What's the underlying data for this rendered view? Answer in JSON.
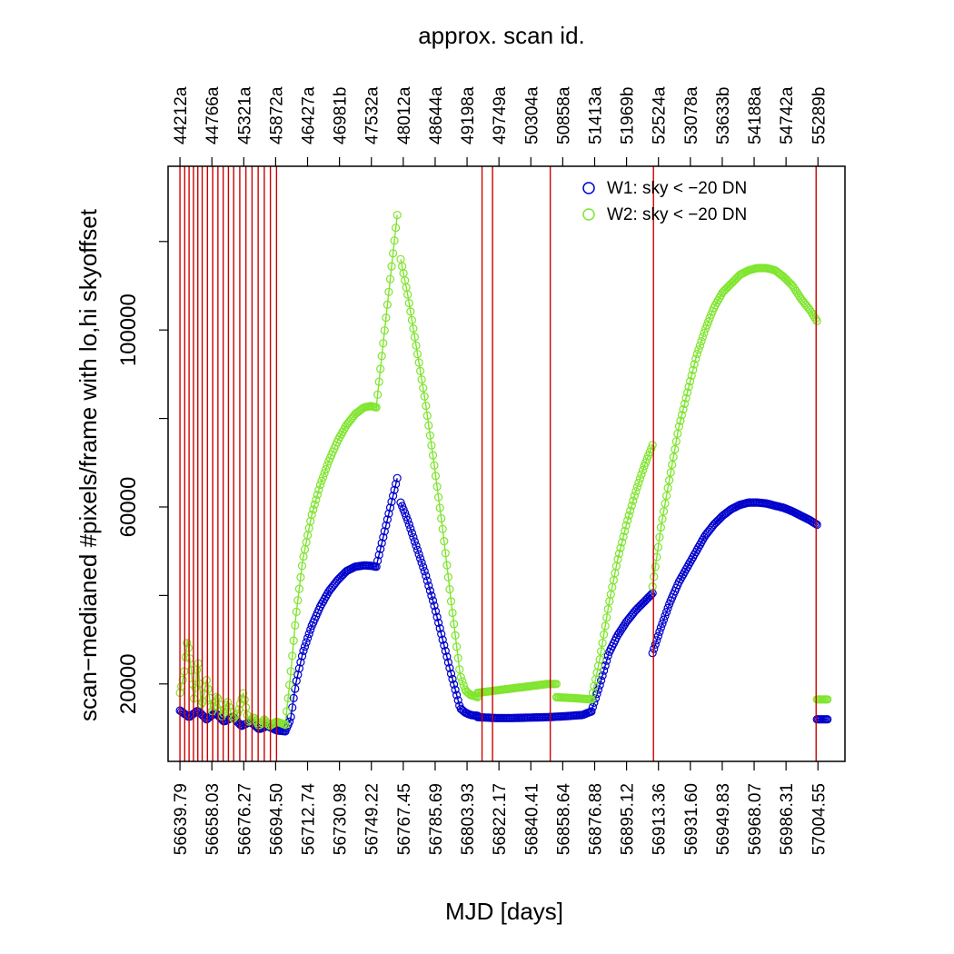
{
  "chart_data": {
    "type": "scatter",
    "title": "approx. scan id.",
    "xlabel": "MJD [days]",
    "ylabel": "scan−medianed #pixels/frame with lo,hi skyoffset",
    "xlim": [
      56633,
      57020
    ],
    "ylim": [
      2500,
      137000
    ],
    "bottom_ticks": [
      "56639.79",
      "56658.03",
      "56676.27",
      "56694.50",
      "56712.74",
      "56730.98",
      "56749.22",
      "56767.45",
      "56785.69",
      "56803.93",
      "56822.17",
      "56840.41",
      "56858.64",
      "56876.88",
      "56895.12",
      "56913.36",
      "56931.60",
      "56949.83",
      "56968.07",
      "56986.31",
      "57004.55"
    ],
    "top_ticks": [
      "44212a",
      "44766a",
      "45321a",
      "45872a",
      "46427a",
      "46981b",
      "47532a",
      "48012a",
      "48644a",
      "49198a",
      "49749a",
      "50304a",
      "50858a",
      "51413a",
      "51969b",
      "52524a",
      "53078a",
      "53633b",
      "54188a",
      "54742a",
      "55289b"
    ],
    "y_ticks": [
      20000,
      60000,
      100000
    ],
    "y_minor_ticks": [
      40000,
      80000,
      120000
    ],
    "vertical_lines_x": [
      56639.79,
      56642.5,
      56645.0,
      56647.5,
      56650.0,
      56652.5,
      56655.5,
      56658.5,
      56661.5,
      56664.5,
      56667.5,
      56670.5,
      56674.0,
      56677.5,
      56681.0,
      56684.5,
      56688.0,
      56691.5,
      56695.0,
      56812.5,
      56818.5,
      56851.5,
      56910.5,
      57003.5
    ],
    "legend": {
      "position": "top-right",
      "entries": [
        {
          "label": "W1: sky < −20 DN",
          "color": "#0000cc"
        },
        {
          "label": "W2: sky < −20 DN",
          "color": "#7fe52e"
        }
      ]
    },
    "series": [
      {
        "name": "W1: sky < −20 DN",
        "color": "#0000cc",
        "segments": [
          {
            "x": [
              56639.8,
              56645,
              56650,
              56655,
              56660,
              56665,
              56670,
              56675,
              56680,
              56685,
              56690,
              56695,
              56700
            ],
            "y": [
              14000,
              12500,
              14000,
              12000,
              13500,
              11500,
              12500,
              10500,
              11500,
              9800,
              10500,
              9500,
              9300
            ]
          },
          {
            "x": [
              56700,
              56703,
              56706,
              56710,
              56715,
              56720,
              56725,
              56730,
              56735,
              56740,
              56745,
              56749,
              56752
            ],
            "y": [
              9300,
              12000,
              20000,
              27000,
              33000,
              37500,
              41000,
              43500,
              45500,
              46500,
              46800,
              46700,
              46500
            ]
          },
          {
            "x": [
              56752,
              56764
            ],
            "y": [
              46500,
              66500
            ]
          },
          {
            "x": [
              56766,
              56770,
              56775,
              56780,
              56785,
              56790,
              56795,
              56800,
              56803,
              56806,
              56810
            ],
            "y": [
              61000,
              57000,
              51000,
              45000,
              38000,
              30000,
              22000,
              14500,
              13500,
              13000,
              12800
            ]
          },
          {
            "x": [
              56810,
              56820,
              56830,
              56840,
              56850,
              56860,
              56870,
              56875
            ],
            "y": [
              12500,
              12300,
              12300,
              12400,
              12500,
              12700,
              13000,
              13800
            ]
          },
          {
            "x": [
              56875,
              56880,
              56885,
              56890,
              56895,
              56900,
              56905,
              56910
            ],
            "y": [
              13800,
              20000,
              27000,
              31000,
              34000,
              36500,
              38500,
              40500
            ]
          },
          {
            "x": [
              56910,
              56915,
              56920,
              56925,
              56930,
              56935,
              56940,
              56945,
              56950,
              56955,
              56960,
              56965,
              56970,
              56975,
              56980,
              56985,
              56990,
              56995,
              57000,
              57004
            ],
            "y": [
              27000,
              33000,
              38500,
              43000,
              46500,
              50000,
              53500,
              56000,
              58000,
              59500,
              60500,
              61000,
              61000,
              60800,
              60300,
              59800,
              59000,
              58000,
              57000,
              56000
            ]
          },
          {
            "x": [
              57004,
              57010
            ],
            "y": [
              12000,
              12000
            ]
          }
        ]
      },
      {
        "name": "W2: sky < −20 DN",
        "color": "#7fe52e",
        "segments": [
          {
            "x": [
              56639.8,
              56642,
              56644,
              56646,
              56648,
              56650,
              56652,
              56655,
              56658,
              56661,
              56664,
              56667,
              56670,
              56673,
              56676,
              56679,
              56682,
              56685,
              56688,
              56691,
              56695,
              56700
            ],
            "y": [
              18000,
              22000,
              30000,
              24000,
              16000,
              26000,
              14500,
              21000,
              13500,
              17500,
              12500,
              16000,
              12000,
              13500,
              18000,
              11500,
              12500,
              10500,
              12000,
              10500,
              11500,
              10800
            ]
          },
          {
            "x": [
              56700,
              56703,
              56706,
              56710,
              56715,
              56720,
              56725,
              56730,
              56735,
              56740,
              56745,
              56749,
              56752
            ],
            "y": [
              10800,
              22000,
              35000,
              48000,
              58000,
              65000,
              70500,
              75000,
              78500,
              81000,
              82500,
              82800,
              82500
            ]
          },
          {
            "x": [
              56752,
              56764
            ],
            "y": [
              82500,
              126000
            ]
          },
          {
            "x": [
              56766,
              56770,
              56775,
              56780,
              56785,
              56790,
              56795,
              56800,
              56803,
              56806,
              56810
            ],
            "y": [
              116000,
              108000,
              96000,
              84000,
              70000,
              55000,
              38000,
              22000,
              18500,
              17500,
              17000
            ]
          },
          {
            "x": [
              56810,
              56820,
              56830,
              56840,
              56850,
              56855
            ],
            "y": [
              18000,
              18500,
              19000,
              19500,
              20000,
              20000
            ]
          },
          {
            "x": [
              56855,
              56865,
              56875
            ],
            "y": [
              17000,
              16800,
              16500
            ]
          },
          {
            "x": [
              56875,
              56880,
              56885,
              56890,
              56895,
              56900,
              56905,
              56910
            ],
            "y": [
              16500,
              26000,
              38000,
              48000,
              56000,
              63000,
              69000,
              74000
            ]
          },
          {
            "x": [
              56910,
              56915,
              56920,
              56925,
              56930,
              56935,
              56940,
              56945,
              56950,
              56955,
              56960,
              56965,
              56970,
              56975,
              56980,
              56985,
              56990,
              56995,
              57000,
              57004
            ],
            "y": [
              42000,
              56000,
              67000,
              78000,
              86000,
              94000,
              100000,
              105000,
              108500,
              110500,
              112500,
              113500,
              114000,
              114000,
              113500,
              112000,
              110000,
              107000,
              104500,
              102000
            ]
          },
          {
            "x": [
              57004,
              57010
            ],
            "y": [
              16500,
              16500
            ]
          }
        ]
      }
    ]
  }
}
